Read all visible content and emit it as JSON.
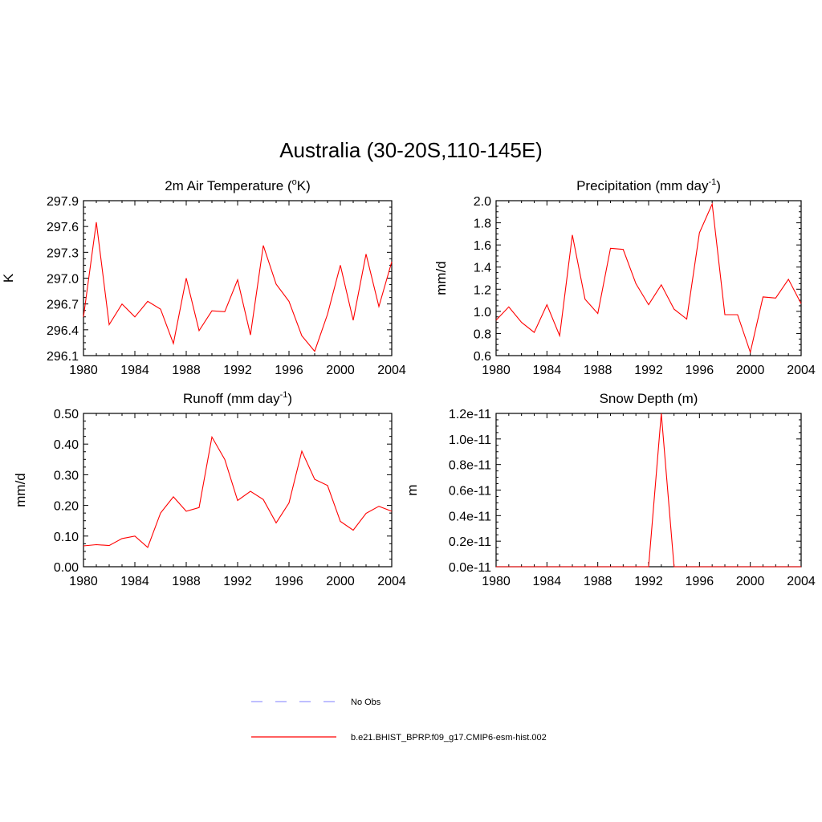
{
  "figure": {
    "title": "Australia (30-20S,110-145E)"
  },
  "legend": {
    "items": [
      {
        "label": "No Obs",
        "color": "#9999ff",
        "dash": true
      },
      {
        "label": "b.e21.BHIST_BPRP.f09_g17.CMIP6-esm-hist.002",
        "color": "#ff0000",
        "dash": false
      }
    ]
  },
  "chart_data": [
    {
      "type": "line",
      "title": "2m Air Temperature (",
      "title_super": "o",
      "title_after": "K)",
      "ylabel": "K",
      "xlim": [
        1980,
        2004
      ],
      "ylim": [
        296.1,
        297.9
      ],
      "xticks": [
        "1980",
        "1984",
        "1988",
        "1992",
        "1996",
        "2000",
        "2004"
      ],
      "yticks": [
        "296.1",
        "296.4",
        "296.7",
        "297.0",
        "297.3",
        "297.6",
        "297.9"
      ],
      "x": [
        1980,
        1981,
        1982,
        1983,
        1984,
        1985,
        1986,
        1987,
        1988,
        1989,
        1990,
        1991,
        1992,
        1993,
        1994,
        1995,
        1996,
        1997,
        1998,
        1999,
        2000,
        2001,
        2002,
        2003,
        2004
      ],
      "series": [
        {
          "name": "b.e21.BHIST_BPRP.f09_g17.CMIP6-esm-hist.002",
          "color": "#ff0000",
          "values": [
            296.55,
            297.65,
            296.46,
            296.7,
            296.55,
            296.73,
            296.64,
            296.24,
            297.0,
            296.39,
            296.62,
            296.61,
            296.98,
            296.34,
            297.38,
            296.93,
            296.73,
            296.33,
            296.15,
            296.58,
            297.15,
            296.51,
            297.28,
            296.67,
            297.19
          ]
        }
      ]
    },
    {
      "type": "line",
      "title": "Precipitation (mm day",
      "title_super": "-1",
      "title_after": ")",
      "ylabel": "mm/d",
      "xlim": [
        1980,
        2004
      ],
      "ylim": [
        0.6,
        2.0
      ],
      "xticks": [
        "1980",
        "1984",
        "1988",
        "1992",
        "1996",
        "2000",
        "2004"
      ],
      "yticks": [
        "0.6",
        "0.8",
        "1.0",
        "1.2",
        "1.4",
        "1.6",
        "1.8",
        "2.0"
      ],
      "x": [
        1980,
        1981,
        1982,
        1983,
        1984,
        1985,
        1986,
        1987,
        1988,
        1989,
        1990,
        1991,
        1992,
        1993,
        1994,
        1995,
        1996,
        1997,
        1998,
        1999,
        2000,
        2001,
        2002,
        2003,
        2004
      ],
      "series": [
        {
          "name": "b.e21.BHIST_BPRP.f09_g17.CMIP6-esm-hist.002",
          "color": "#ff0000",
          "values": [
            0.92,
            1.04,
            0.9,
            0.81,
            1.06,
            0.78,
            1.69,
            1.11,
            0.98,
            1.57,
            1.56,
            1.25,
            1.06,
            1.24,
            1.02,
            0.93,
            1.71,
            1.97,
            0.97,
            0.97,
            0.63,
            1.13,
            1.12,
            1.29,
            1.07
          ]
        }
      ]
    },
    {
      "type": "line",
      "title": "Runoff (mm day",
      "title_super": "-1",
      "title_after": ")",
      "ylabel": "mm/d",
      "xlim": [
        1980,
        2004
      ],
      "ylim": [
        0.0,
        0.5
      ],
      "xticks": [
        "1980",
        "1984",
        "1988",
        "1992",
        "1996",
        "2000",
        "2004"
      ],
      "yticks": [
        "0.00",
        "0.10",
        "0.20",
        "0.30",
        "0.40",
        "0.50"
      ],
      "x": [
        1980,
        1981,
        1982,
        1983,
        1984,
        1985,
        1986,
        1987,
        1988,
        1989,
        1990,
        1991,
        1992,
        1993,
        1994,
        1995,
        1996,
        1997,
        1998,
        1999,
        2000,
        2001,
        2002,
        2003,
        2004
      ],
      "series": [
        {
          "name": "b.e21.BHIST_BPRP.f09_g17.CMIP6-esm-hist.002",
          "color": "#ff0000",
          "values": [
            0.068,
            0.072,
            0.069,
            0.092,
            0.1,
            0.063,
            0.175,
            0.228,
            0.181,
            0.193,
            0.423,
            0.35,
            0.216,
            0.246,
            0.219,
            0.143,
            0.208,
            0.377,
            0.285,
            0.265,
            0.148,
            0.119,
            0.174,
            0.197,
            0.181
          ]
        }
      ]
    },
    {
      "type": "line",
      "title": "Snow Depth (m)",
      "title_super": "",
      "title_after": "",
      "ylabel": "m",
      "xlim": [
        1980,
        2004
      ],
      "ylim": [
        0.0,
        1.2e-11
      ],
      "xticks": [
        "1980",
        "1984",
        "1988",
        "1992",
        "1996",
        "2000",
        "2004"
      ],
      "yticks": [
        "0.0e-11",
        "0.2e-11",
        "0.4e-11",
        "0.6e-11",
        "0.8e-11",
        "1.0e-11",
        "1.2e-11"
      ],
      "x": [
        1980,
        1981,
        1982,
        1983,
        1984,
        1985,
        1986,
        1987,
        1988,
        1989,
        1990,
        1991,
        1992,
        1993,
        1994,
        1995,
        1996,
        1997,
        1998,
        1999,
        2000,
        2001,
        2002,
        2003,
        2004
      ],
      "series": [
        {
          "name": "b.e21.BHIST_BPRP.f09_g17.CMIP6-esm-hist.002",
          "color": "#ff0000",
          "values": [
            0,
            0,
            0,
            0,
            0,
            0,
            0,
            0,
            0,
            0,
            0,
            0,
            0,
            1.2e-11,
            0,
            0,
            0,
            0,
            0,
            0,
            0,
            0,
            0,
            0,
            0
          ]
        }
      ]
    }
  ]
}
